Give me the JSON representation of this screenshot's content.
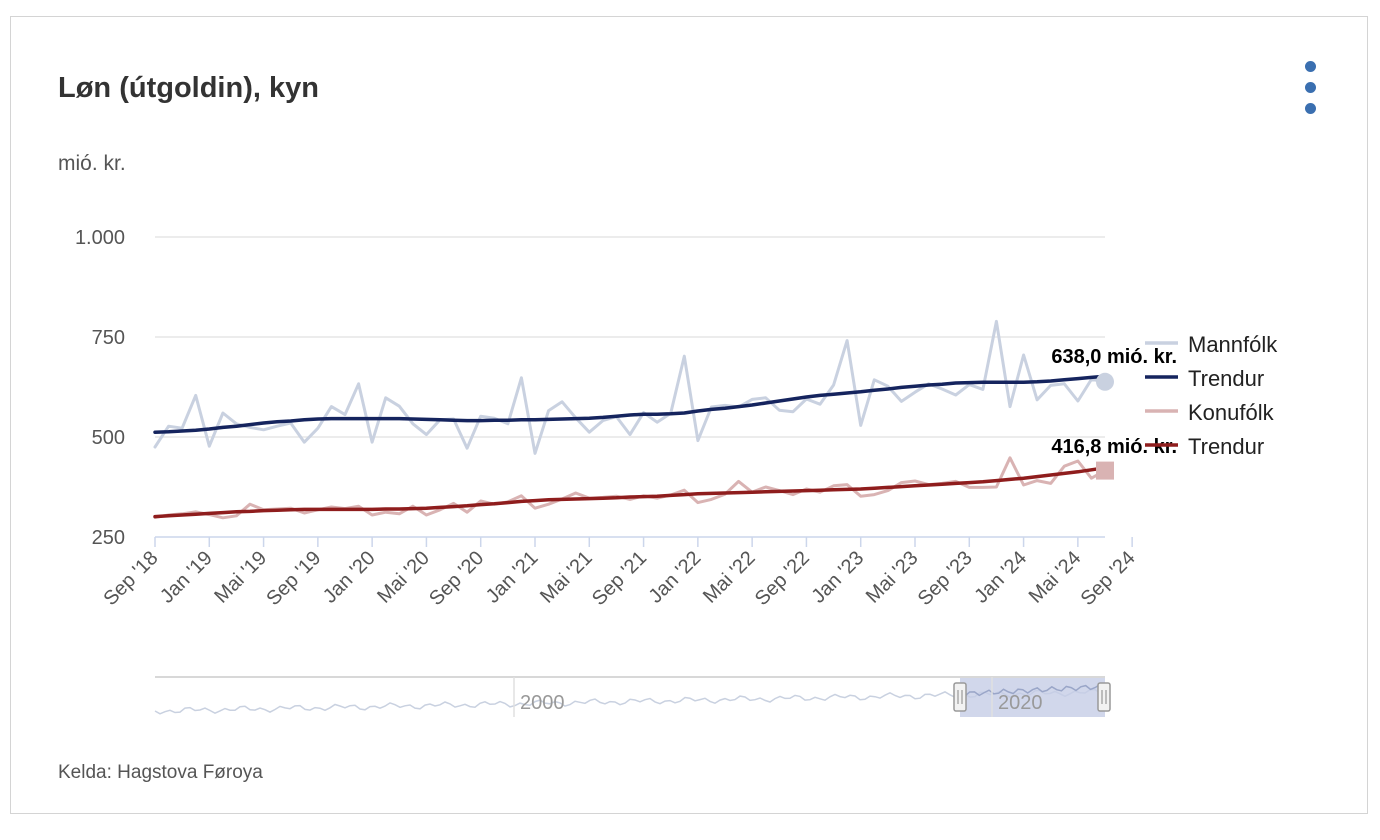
{
  "title": "Løn (útgoldin), kyn",
  "unit_label": "mió. kr.",
  "source": "Kelda: Hagstova Føroya",
  "menu_icon": "three-dots-vertical-icon",
  "navigator": {
    "labels": [
      "2000",
      "2020"
    ]
  },
  "annotations": [
    {
      "text": "638,0 mió. kr.",
      "series": 0
    },
    {
      "text": "416,8 mió. kr.",
      "series": 2
    }
  ],
  "chart_data": {
    "type": "line",
    "title": "Løn (útgoldin), kyn",
    "ylabel": "mió. kr.",
    "xlabel": "",
    "ylim": [
      250,
      1000
    ],
    "yticks": [
      250,
      500,
      750,
      1000
    ],
    "ytick_labels": [
      "250",
      "500",
      "750",
      "1.000"
    ],
    "grid": true,
    "legend_position": "right",
    "x_start": "2018-09",
    "x_end": "2024-09",
    "xtick_labels": [
      "Sep '18",
      "Jan '19",
      "Mai '19",
      "Sep '19",
      "Jan '20",
      "Mai '20",
      "Sep '20",
      "Jan '21",
      "Mai '21",
      "Sep '21",
      "Jan '22",
      "Mai '22",
      "Sep '22",
      "Jan '23",
      "Mai '23",
      "Sep '23",
      "Jan '24",
      "Mai '24",
      "Sep '24"
    ],
    "series": [
      {
        "name": "Mannfólk",
        "color": "#c9d1e0",
        "width": 3,
        "values": [
          475,
          527,
          522,
          604,
          477,
          560,
          533,
          524,
          518,
          527,
          535,
          487,
          522,
          576,
          556,
          633,
          487,
          598,
          577,
          533,
          506,
          543,
          545,
          472,
          552,
          547,
          533,
          648,
          459,
          566,
          588,
          548,
          512,
          541,
          551,
          506,
          561,
          537,
          559,
          702,
          491,
          575,
          579,
          575,
          594,
          598,
          567,
          563,
          595,
          582,
          630,
          741,
          529,
          643,
          627,
          589,
          612,
          633,
          620,
          605,
          631,
          619,
          789,
          576,
          705,
          593,
          629,
          633,
          590,
          644,
          638
        ]
      },
      {
        "name": "Trendur",
        "color": "#15245e",
        "width": 3.5,
        "values": [
          512,
          513,
          515,
          517,
          520,
          524,
          527,
          531,
          535,
          538,
          540,
          543,
          545,
          546,
          546,
          546,
          546,
          546,
          546,
          545,
          544,
          543,
          542,
          541,
          541,
          542,
          542,
          543,
          543,
          544,
          545,
          546,
          547,
          549,
          552,
          555,
          557,
          557,
          558,
          560,
          565,
          569,
          572,
          576,
          580,
          585,
          590,
          595,
          600,
          604,
          607,
          610,
          613,
          617,
          620,
          624,
          627,
          630,
          632,
          635,
          636,
          637,
          637,
          637,
          637,
          638,
          640,
          643,
          646,
          649,
          652
        ]
      },
      {
        "name": "Konufólk",
        "color": "#d9b3b3",
        "width": 3,
        "values": [
          299,
          305,
          308,
          313,
          306,
          298,
          303,
          332,
          318,
          320,
          322,
          310,
          318,
          325,
          321,
          327,
          305,
          312,
          308,
          327,
          305,
          318,
          334,
          312,
          340,
          332,
          338,
          353,
          322,
          332,
          345,
          360,
          347,
          349,
          352,
          344,
          353,
          347,
          355,
          367,
          336,
          344,
          357,
          389,
          362,
          375,
          366,
          356,
          370,
          362,
          378,
          381,
          352,
          356,
          366,
          386,
          390,
          381,
          384,
          389,
          374,
          374,
          375,
          448,
          380,
          391,
          384,
          427,
          440,
          397,
          416
        ]
      },
      {
        "name": "Trendur",
        "color": "#8f1d1d",
        "width": 3.5,
        "values": [
          301,
          303,
          305,
          307,
          309,
          311,
          313,
          314,
          316,
          317,
          318,
          319,
          319,
          319,
          319,
          319,
          319,
          320,
          320,
          321,
          322,
          324,
          326,
          328,
          331,
          333,
          336,
          339,
          341,
          343,
          344,
          345,
          346,
          347,
          348,
          350,
          351,
          352,
          354,
          356,
          358,
          359,
          360,
          361,
          362,
          363,
          364,
          365,
          366,
          367,
          368,
          369,
          370,
          372,
          374,
          376,
          378,
          380,
          382,
          384,
          386,
          388,
          391,
          394,
          397,
          401,
          405,
          409,
          413,
          418,
          423
        ]
      }
    ]
  }
}
